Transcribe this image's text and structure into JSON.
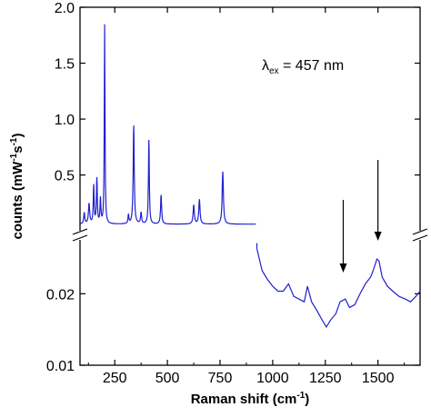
{
  "chart_data": {
    "type": "line",
    "title": "",
    "xlabel": "Raman shift (cm",
    "xlabel_sup": "-1",
    "xlabel_close": ")",
    "ylabel_parts": [
      "counts (mW",
      "-1",
      "s",
      "-1",
      ")"
    ],
    "xlim": [
      85,
      1700
    ],
    "x_ticks": [
      250,
      500,
      750,
      1000,
      1250,
      1500
    ],
    "x_tick_labels": [
      "250",
      "500",
      "750",
      "1000",
      "1250",
      "1500"
    ],
    "upper_panel": {
      "ylim": [
        0.05,
        2.0
      ],
      "scale": "linear",
      "y_ticks": [
        0.5,
        1.0,
        1.5,
        2.0
      ],
      "y_tick_labels": [
        "0.5",
        "1.0",
        "1.5",
        "2.0"
      ]
    },
    "lower_panel": {
      "ylim": [
        0.01,
        0.032
      ],
      "scale": "log",
      "y_ticks": [
        0.01,
        0.02
      ],
      "y_tick_labels": [
        "0.01",
        "0.02"
      ]
    },
    "axis_break": true,
    "color": "#2020d0",
    "annotation": {
      "lambda": "λ",
      "sub": "ex",
      "text": " = 457 nm"
    },
    "arrows_at": [
      1335,
      1500
    ],
    "series": [
      {
        "panel": "upper",
        "baseline": 0.06,
        "x_range": [
          85,
          920
        ],
        "peaks": [
          {
            "x": 105,
            "height": 0.1,
            "width": 6
          },
          {
            "x": 128,
            "height": 0.18,
            "width": 7
          },
          {
            "x": 150,
            "height": 0.34,
            "width": 5
          },
          {
            "x": 165,
            "height": 0.4,
            "width": 5
          },
          {
            "x": 182,
            "height": 0.22,
            "width": 5
          },
          {
            "x": 202,
            "height": 1.78,
            "width": 4
          },
          {
            "x": 315,
            "height": 0.08,
            "width": 5
          },
          {
            "x": 340,
            "height": 0.88,
            "width": 6
          },
          {
            "x": 375,
            "height": 0.1,
            "width": 6
          },
          {
            "x": 412,
            "height": 0.75,
            "width": 5
          },
          {
            "x": 470,
            "height": 0.26,
            "width": 6
          },
          {
            "x": 625,
            "height": 0.17,
            "width": 7
          },
          {
            "x": 652,
            "height": 0.22,
            "width": 7
          },
          {
            "x": 763,
            "height": 0.47,
            "width": 7
          }
        ]
      },
      {
        "panel": "lower",
        "x": [
          925,
          950,
          975,
          1000,
          1025,
          1050,
          1075,
          1100,
          1125,
          1150,
          1165,
          1185,
          1210,
          1235,
          1255,
          1275,
          1300,
          1320,
          1345,
          1365,
          1390,
          1415,
          1440,
          1465,
          1480,
          1495,
          1505,
          1520,
          1545,
          1570,
          1600,
          1630,
          1655,
          1680,
          1700
        ],
        "y": [
          0.031,
          0.025,
          0.023,
          0.0215,
          0.0205,
          0.0205,
          0.022,
          0.0195,
          0.019,
          0.0185,
          0.0215,
          0.0185,
          0.017,
          0.0155,
          0.0145,
          0.0155,
          0.0165,
          0.0185,
          0.019,
          0.0175,
          0.018,
          0.02,
          0.022,
          0.0235,
          0.0255,
          0.028,
          0.0275,
          0.0235,
          0.0215,
          0.0205,
          0.0195,
          0.019,
          0.0185,
          0.0195,
          0.0205
        ]
      }
    ]
  }
}
